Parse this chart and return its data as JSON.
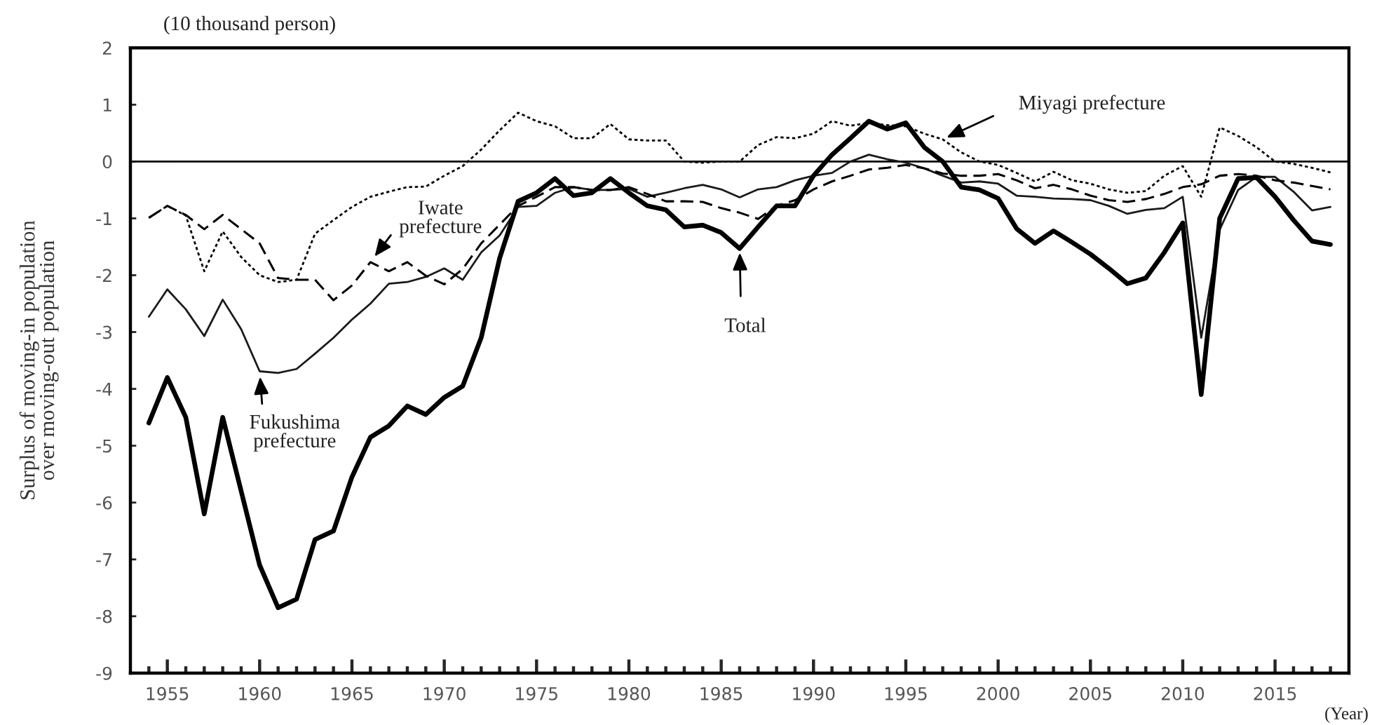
{
  "chart_data": {
    "type": "line",
    "xlabel": "(Year)",
    "ylabel": "Surplus of moving-in population\nover moving-out population",
    "annotations": [
      "(10 thousand person)",
      {
        "text": "Iwate\nprefecture",
        "x": 1966,
        "y": -1.77
      },
      {
        "text": "Miyagi prefecture",
        "x": 1997,
        "y": 0.39
      },
      {
        "text": "Total",
        "x": 1986,
        "y": -1.53
      },
      {
        "text": "Fukushima\nprefecture",
        "x": 1960,
        "y": -3.69
      }
    ],
    "x": [
      1954,
      1955,
      1956,
      1957,
      1958,
      1959,
      1960,
      1961,
      1962,
      1963,
      1964,
      1965,
      1966,
      1967,
      1968,
      1969,
      1970,
      1971,
      1972,
      1973,
      1974,
      1975,
      1976,
      1977,
      1978,
      1979,
      1980,
      1981,
      1982,
      1983,
      1984,
      1985,
      1986,
      1987,
      1988,
      1989,
      1990,
      1991,
      1992,
      1993,
      1994,
      1995,
      1996,
      1997,
      1998,
      1999,
      2000,
      2001,
      2002,
      2003,
      2004,
      2005,
      2006,
      2007,
      2008,
      2009,
      2010,
      2011,
      2012,
      2013,
      2014,
      2015,
      2016,
      2017,
      2018
    ],
    "series": [
      {
        "color": "#000000",
        "line_style": "solid",
        "values": [
          -4.6,
          -3.8,
          -4.5,
          -6.2,
          -4.5,
          -5.8,
          -7.1,
          -7.85,
          -7.7,
          -6.65,
          -6.5,
          -5.55,
          -4.85,
          -4.65,
          -4.3,
          -4.45,
          -4.15,
          -3.95,
          -3.1,
          -1.7,
          -0.7,
          -0.55,
          -0.3,
          -0.6,
          -0.55,
          -0.3,
          -0.55,
          -0.78,
          -0.85,
          -1.15,
          -1.12,
          -1.25,
          -1.53,
          -1.15,
          -0.78,
          -0.78,
          -0.25,
          0.12,
          0.41,
          0.71,
          0.57,
          0.68,
          0.25,
          0.0,
          -0.45,
          -0.5,
          -0.65,
          -1.18,
          -1.44,
          -1.22,
          -1.42,
          -1.63,
          -1.88,
          -2.15,
          -2.05,
          -1.6,
          -1.08,
          -4.1,
          -1.0,
          -0.3,
          -0.28,
          -0.62,
          -1.03,
          -1.4,
          -1.46
        ]
      },
      {
        "color": "#000000",
        "line_style": "dotted",
        "values": [
          -0.99,
          -0.78,
          -0.95,
          -1.93,
          -1.23,
          -1.68,
          -2.0,
          -2.12,
          -2.08,
          -1.27,
          -1.03,
          -0.8,
          -0.62,
          -0.53,
          -0.45,
          -0.44,
          -0.25,
          -0.08,
          0.21,
          0.55,
          0.86,
          0.71,
          0.62,
          0.41,
          0.41,
          0.66,
          0.39,
          0.37,
          0.37,
          0.0,
          -0.02,
          0.0,
          0.0,
          0.29,
          0.43,
          0.41,
          0.49,
          0.71,
          0.63,
          0.68,
          0.64,
          0.62,
          0.49,
          0.39,
          0.16,
          0.0,
          -0.06,
          -0.2,
          -0.35,
          -0.18,
          -0.33,
          -0.39,
          -0.49,
          -0.55,
          -0.52,
          -0.25,
          -0.08,
          -0.62,
          0.6,
          0.45,
          0.25,
          0.0,
          -0.04,
          -0.11,
          -0.19
        ]
      },
      {
        "color": "#000000",
        "line_style": "dashed",
        "values": [
          -0.99,
          -0.78,
          -0.94,
          -1.19,
          -0.94,
          -1.19,
          -1.44,
          -2.05,
          -2.08,
          -2.08,
          -2.44,
          -2.18,
          -1.77,
          -1.93,
          -1.77,
          -2.01,
          -2.16,
          -1.89,
          -1.44,
          -1.11,
          -0.78,
          -0.62,
          -0.45,
          -0.45,
          -0.5,
          -0.5,
          -0.45,
          -0.57,
          -0.7,
          -0.7,
          -0.71,
          -0.82,
          -0.9,
          -1.01,
          -0.78,
          -0.68,
          -0.49,
          -0.35,
          -0.25,
          -0.14,
          -0.11,
          -0.06,
          -0.12,
          -0.21,
          -0.25,
          -0.25,
          -0.22,
          -0.33,
          -0.47,
          -0.41,
          -0.49,
          -0.6,
          -0.68,
          -0.71,
          -0.66,
          -0.57,
          -0.45,
          -0.4,
          -0.25,
          -0.22,
          -0.25,
          -0.33,
          -0.37,
          -0.43,
          -0.49
        ]
      },
      {
        "color": "#1a1a1a",
        "line_style": "solid",
        "values": [
          -2.73,
          -2.25,
          -2.6,
          -3.07,
          -2.43,
          -2.95,
          -3.69,
          -3.72,
          -3.65,
          -3.38,
          -3.1,
          -2.78,
          -2.5,
          -2.15,
          -2.12,
          -2.03,
          -1.88,
          -2.08,
          -1.6,
          -1.3,
          -0.8,
          -0.78,
          -0.55,
          -0.45,
          -0.5,
          -0.5,
          -0.48,
          -0.62,
          -0.55,
          -0.47,
          -0.41,
          -0.49,
          -0.63,
          -0.49,
          -0.45,
          -0.33,
          -0.25,
          -0.2,
          0.0,
          0.12,
          0.04,
          -0.02,
          -0.12,
          -0.25,
          -0.37,
          -0.35,
          -0.39,
          -0.6,
          -0.62,
          -0.65,
          -0.66,
          -0.68,
          -0.78,
          -0.92,
          -0.85,
          -0.82,
          -0.62,
          -3.1,
          -1.2,
          -0.5,
          -0.27,
          -0.27,
          -0.53,
          -0.86,
          -0.8
        ]
      }
    ],
    "xlim": [
      1953,
      2019
    ],
    "ylim": [
      -9,
      2
    ],
    "xticks": [
      {
        "value": 1954,
        "label": null
      },
      1955,
      {
        "value": 1956,
        "label": null
      },
      {
        "value": 1957,
        "label": null
      },
      {
        "value": 1958,
        "label": null
      },
      {
        "value": 1959,
        "label": null
      },
      1960,
      {
        "value": 1961,
        "label": null
      },
      {
        "value": 1962,
        "label": null
      },
      {
        "value": 1963,
        "label": null
      },
      {
        "value": 1964,
        "label": null
      },
      1965,
      {
        "value": 1966,
        "label": null
      },
      {
        "value": 1967,
        "label": null
      },
      {
        "value": 1968,
        "label": null
      },
      {
        "value": 1969,
        "label": null
      },
      1970,
      {
        "value": 1971,
        "label": null
      },
      {
        "value": 1972,
        "label": null
      },
      {
        "value": 1973,
        "label": null
      },
      {
        "value": 1974,
        "label": null
      },
      1975,
      {
        "value": 1976,
        "label": null
      },
      {
        "value": 1977,
        "label": null
      },
      {
        "value": 1978,
        "label": null
      },
      {
        "value": 1979,
        "label": null
      },
      1980,
      {
        "value": 1981,
        "label": null
      },
      {
        "value": 1982,
        "label": null
      },
      {
        "value": 1983,
        "label": null
      },
      {
        "value": 1984,
        "label": null
      },
      1985,
      {
        "value": 1986,
        "label": null
      },
      {
        "value": 1987,
        "label": null
      },
      {
        "value": 1988,
        "label": null
      },
      {
        "value": 1989,
        "label": null
      },
      1990,
      {
        "value": 1991,
        "label": null
      },
      {
        "value": 1992,
        "label": null
      },
      {
        "value": 1993,
        "label": null
      },
      {
        "value": 1994,
        "label": null
      },
      1995,
      {
        "value": 1996,
        "label": null
      },
      {
        "value": 1997,
        "label": null
      },
      {
        "value": 1998,
        "label": null
      },
      {
        "value": 1999,
        "label": null
      },
      2000,
      {
        "value": 2001,
        "label": null
      },
      {
        "value": 2002,
        "label": null
      },
      {
        "value": 2003,
        "label": null
      },
      {
        "value": 2004,
        "label": null
      },
      2005,
      {
        "value": 2006,
        "label": null
      },
      {
        "value": 2007,
        "label": null
      },
      {
        "value": 2008,
        "label": null
      },
      {
        "value": 2009,
        "label": null
      },
      2010,
      {
        "value": 2011,
        "label": null
      },
      {
        "value": 2012,
        "label": null
      },
      {
        "value": 2013,
        "label": null
      },
      {
        "value": 2014,
        "label": null
      },
      2015,
      {
        "value": 2016,
        "label": null
      },
      {
        "value": 2017,
        "label": null
      },
      {
        "value": 2018,
        "label": null
      }
    ],
    "yticks": [
      -9,
      -8,
      -7,
      -6,
      -5,
      -4,
      -3,
      -2,
      -1,
      0,
      1,
      2
    ],
    "ref_lines": [
      {
        "axis": "y",
        "value": 0,
        "color": "#000000",
        "line_style": "solid"
      }
    ],
    "grid": false,
    "legend": false
  }
}
